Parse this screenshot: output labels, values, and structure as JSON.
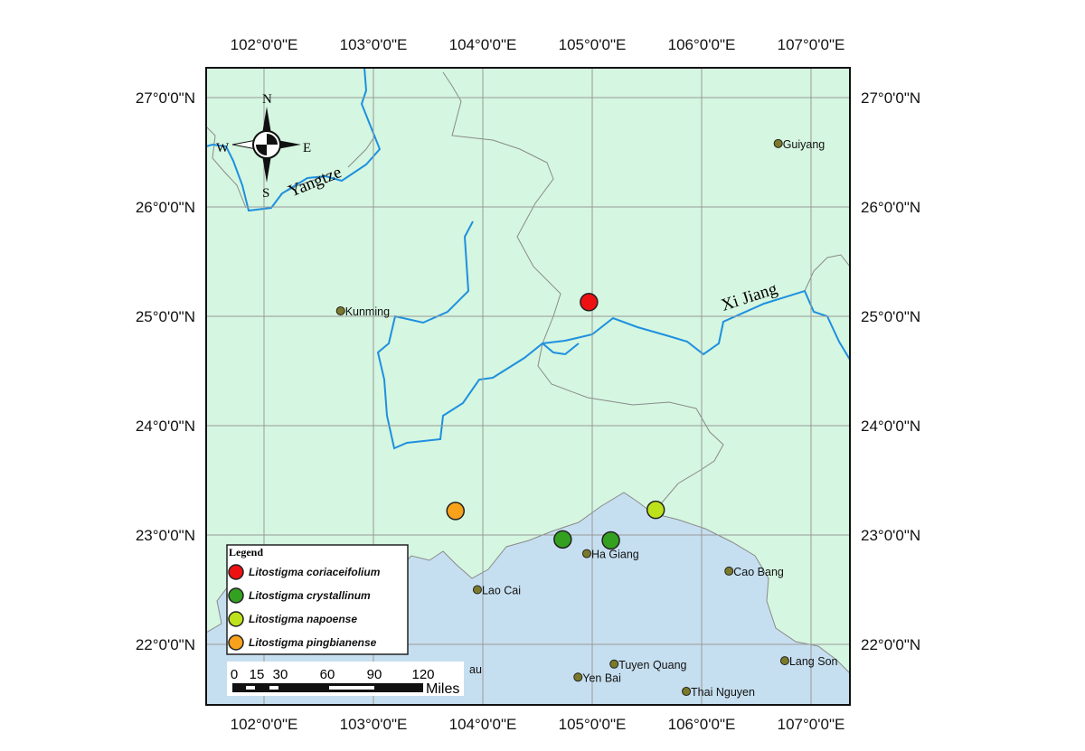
{
  "map": {
    "colors": {
      "china_land": "#d5f6e0",
      "vietnam_land": "#c6dff0",
      "river": "#1e90e0",
      "border": "#8a8a8a",
      "city": "#7a7a2a"
    },
    "lon_ticks": [
      "102°0'0\"E",
      "103°0'0\"E",
      "104°0'0\"E",
      "105°0'0\"E",
      "106°0'0\"E",
      "107°0'0\"E"
    ],
    "lon_values": [
      102,
      103,
      104,
      105,
      106,
      107
    ],
    "lat_ticks": [
      "27°0'0\"N",
      "26°0'0\"N",
      "25°0'0\"N",
      "24°0'0\"N",
      "23°0'0\"N",
      "22°0'0\"N"
    ],
    "lat_values": [
      27,
      26,
      25,
      24,
      23,
      22
    ],
    "cities": [
      {
        "name": "Guiyang",
        "lon": 106.7,
        "lat": 26.58
      },
      {
        "name": "Kunming",
        "lon": 102.7,
        "lat": 25.05
      },
      {
        "name": "Ha Giang",
        "lon": 104.95,
        "lat": 22.83
      },
      {
        "name": "Lao Cai",
        "lon": 103.95,
        "lat": 22.5
      },
      {
        "name": "Cao Bang",
        "lon": 106.25,
        "lat": 22.67
      },
      {
        "name": "Lang Son",
        "lon": 106.76,
        "lat": 21.85
      },
      {
        "name": "Tuyen Quang",
        "lon": 105.2,
        "lat": 21.82
      },
      {
        "name": "Yen Bai",
        "lon": 104.87,
        "lat": 21.7
      },
      {
        "name": "Thai Nguyen",
        "lon": 105.86,
        "lat": 21.57
      }
    ],
    "partial_label": "au",
    "rivers": {
      "yangtze": "Yangtze",
      "xijiang": "Xi Jiang"
    },
    "compass": {
      "n": "N",
      "s": "S",
      "e": "E",
      "w": "W"
    },
    "occurrences": [
      {
        "species": "Litostigma coriaceifolium",
        "lon": 104.97,
        "lat": 25.13
      },
      {
        "species": "Litostigma crystallinum",
        "lon": 104.73,
        "lat": 22.96
      },
      {
        "species": "Litostigma crystallinum",
        "lon": 105.17,
        "lat": 22.95
      },
      {
        "species": "Litostigma napoense",
        "lon": 105.58,
        "lat": 23.23
      },
      {
        "species": "Litostigma pingbianense",
        "lon": 103.75,
        "lat": 23.22
      }
    ],
    "legend": {
      "title": "Legend",
      "items": [
        {
          "label": "Litostigma coriaceifolium",
          "color": "#ee1111"
        },
        {
          "label": "Litostigma crystallinum",
          "color": "#34a020"
        },
        {
          "label": "Litostigma napoense",
          "color": "#bde21c"
        },
        {
          "label": "Litostigma pingbianense",
          "color": "#f8a21c"
        }
      ]
    },
    "scale": {
      "ticks": [
        "0",
        "15",
        "30",
        "60",
        "90",
        "120"
      ],
      "unit": "Miles"
    }
  }
}
